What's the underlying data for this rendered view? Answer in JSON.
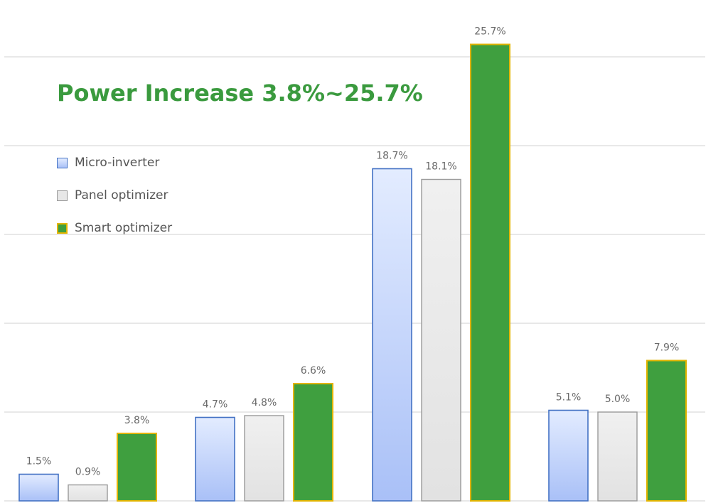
{
  "chart_data": {
    "type": "bar",
    "title": "Power Increase 3.8%~25.7%",
    "categories": [
      "",
      "",
      "",
      ""
    ],
    "series": [
      {
        "name": "Micro-inverter",
        "values": [
          1.5,
          4.7,
          18.7,
          5.1
        ],
        "labels": [
          "1.5%",
          "4.7%",
          "18.7%",
          "5.1%"
        ]
      },
      {
        "name": "Panel optimizer",
        "values": [
          0.9,
          4.8,
          18.1,
          5.0
        ],
        "labels": [
          "0.9%",
          "4.8%",
          "18.1%",
          "5.0%"
        ]
      },
      {
        "name": "Smart optimizer",
        "values": [
          3.8,
          6.6,
          25.7,
          7.9
        ],
        "labels": [
          "3.8%",
          "6.6%",
          "25.7%",
          "7.9%"
        ]
      }
    ],
    "ylim": [
      0,
      25
    ],
    "grid": true,
    "legend": "top-left",
    "colors": {
      "micro_fill_top": "#e3ecff",
      "micro_fill_bottom": "#a9c0f7",
      "micro_border": "#4472c4",
      "panel_fill": "#e7e7e7",
      "panel_border": "#9a9a9a",
      "smart_fill": "#3f9f3f",
      "smart_border": "#e2b400",
      "title": "#3a9a3e",
      "grid": "#d9d9d9"
    }
  }
}
